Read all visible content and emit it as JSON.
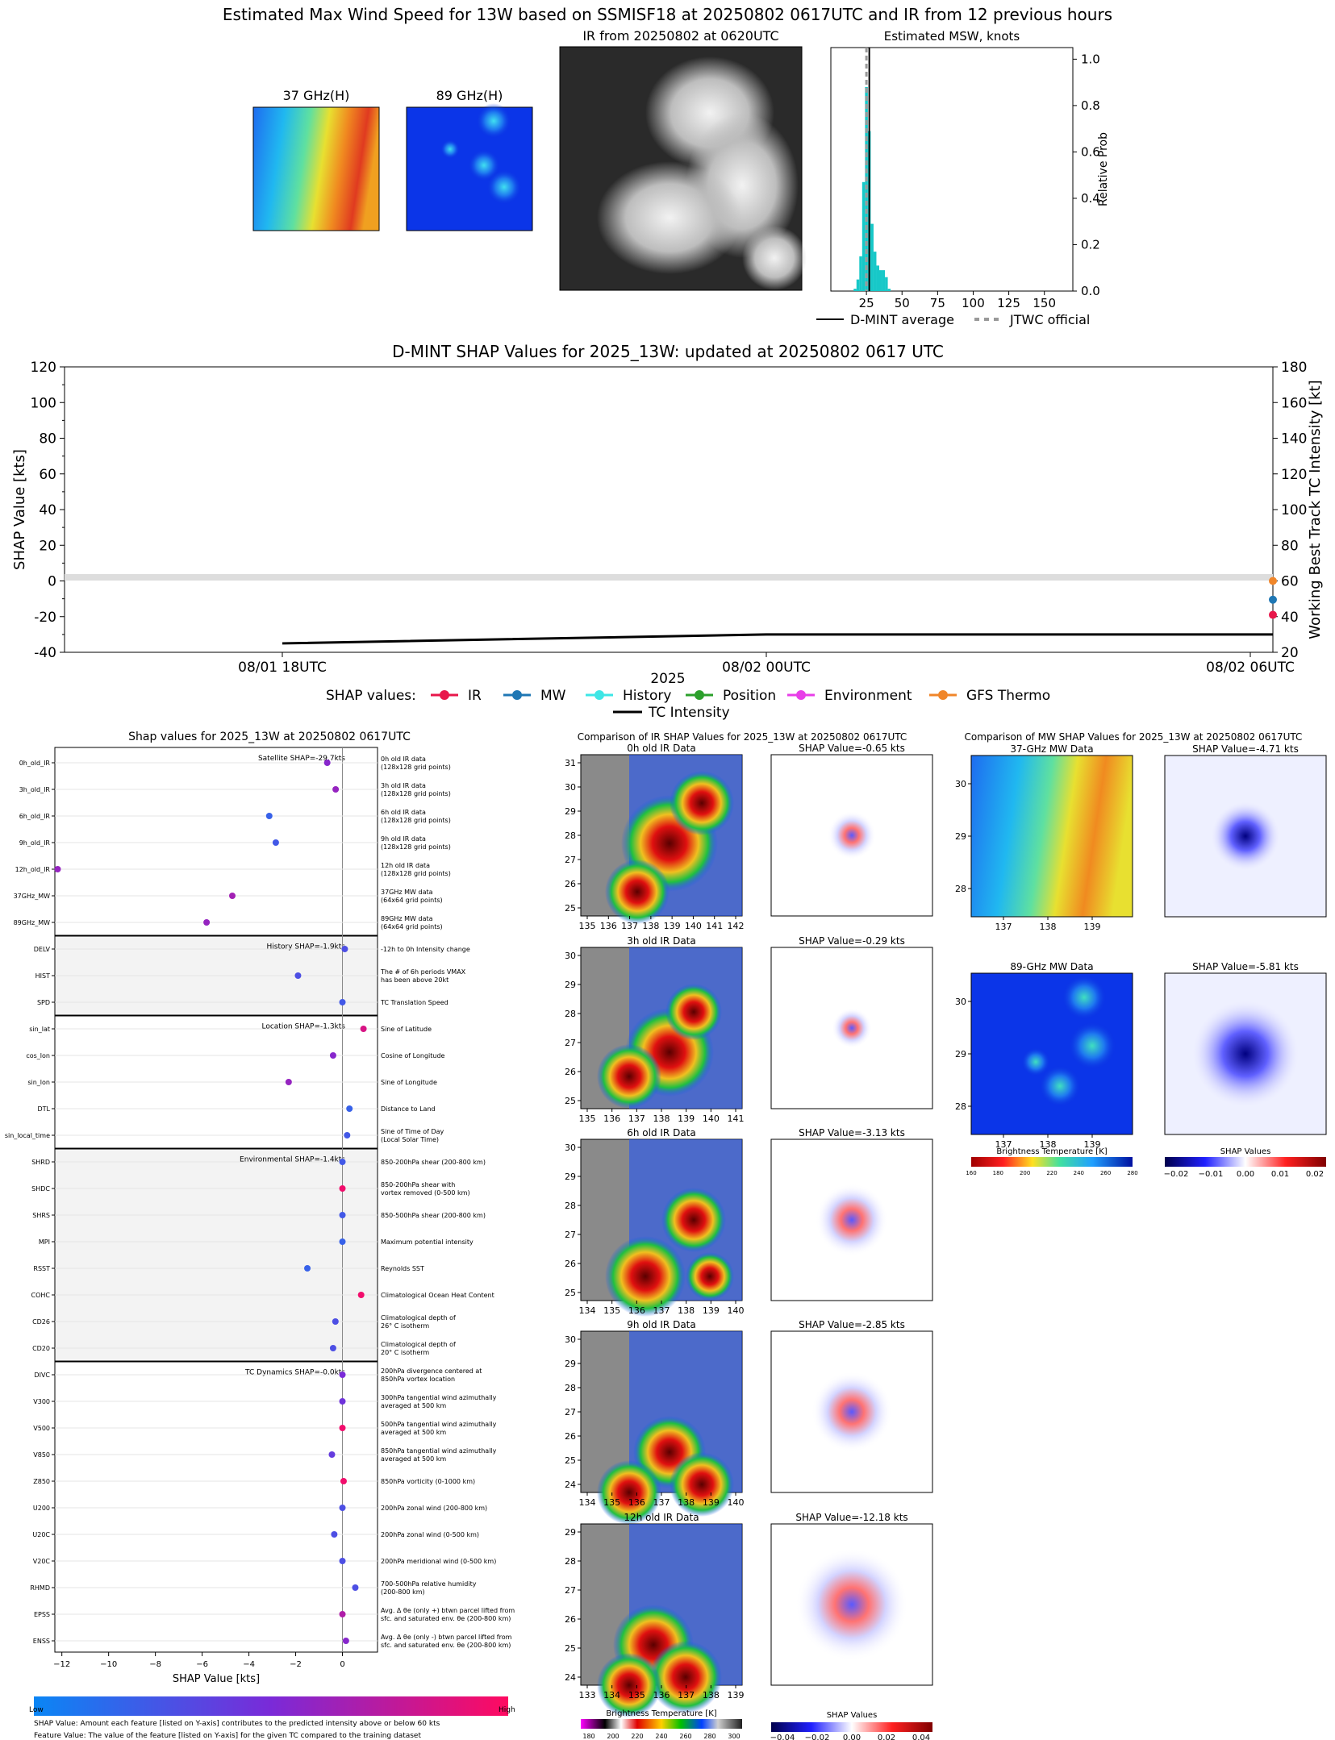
{
  "header": {
    "title": "Estimated Max Wind Speed for 13W based on SSMISF18 at 20250802 0617UTC and IR from 12 previous hours"
  },
  "top_panels": {
    "mw37_title": "37 GHz(H)",
    "mw89_title": "89 GHz(H)",
    "ir_title": "IR from 20250802 at 0620UTC",
    "msw_title": "Estimated MSW, knots",
    "msw_ylabel": "Relative Prob",
    "msw_xticks": [
      "25",
      "50",
      "75",
      "100",
      "125",
      "150"
    ],
    "msw_yticks": [
      "0.0",
      "0.2",
      "0.4",
      "0.6",
      "0.8",
      "1.0"
    ],
    "legend_dmint": "D-MINT average",
    "legend_jtwc": "JTWC official"
  },
  "shap_ts": {
    "title": "D-MINT SHAP Values for 2025_13W: updated at 20250802 0617 UTC",
    "ylabel_left": "SHAP Value [kts]",
    "ylabel_right": "Working Best Track TC Intensity [kt]",
    "xlabel": "2025",
    "left_ticks": [
      "120",
      "100",
      "80",
      "60",
      "40",
      "20",
      "0",
      "-20",
      "-40"
    ],
    "right_ticks": [
      "180",
      "160",
      "140",
      "120",
      "100",
      "80",
      "60",
      "40",
      "20"
    ],
    "x_ticks": [
      "08/01 18UTC",
      "08/02 00UTC",
      "08/02 06UTC"
    ],
    "legend_prefix": "SHAP values:",
    "legend_items": [
      {
        "label": "IR",
        "color": "#e8174b"
      },
      {
        "label": "MW",
        "color": "#1f77b4"
      },
      {
        "label": "History",
        "color": "#3ee6e6"
      },
      {
        "label": "Position",
        "color": "#2ca02c"
      },
      {
        "label": "Environment",
        "color": "#e83ee8"
      },
      {
        "label": "GFS Thermo",
        "color": "#f0862a"
      }
    ],
    "legend_intensity": "TC Intensity"
  },
  "beeswarm": {
    "title": "Shap values for 2025_13W at 20250802 0617UTC",
    "xlabel": "SHAP Value [kts]",
    "x_ticks": [
      "−12",
      "−10",
      "−8",
      "−6",
      "−4",
      "−2",
      "0"
    ],
    "groups": [
      {
        "label": "Satellite SHAP=-29.7kts",
        "shaded": false
      },
      {
        "label": "History SHAP=-1.9kts",
        "shaded": true
      },
      {
        "label": "Location SHAP=-1.3kts",
        "shaded": false
      },
      {
        "label": "Environmental SHAP=-1.4kts",
        "shaded": true
      },
      {
        "label": "TC Dynamics SHAP=-0.0kts",
        "shaded": false
      }
    ],
    "features": [
      {
        "name": "0h_old_IR",
        "desc": [
          "0h old IR data",
          "(128x128 grid points)"
        ]
      },
      {
        "name": "3h_old_IR",
        "desc": [
          "3h old IR data",
          "(128x128 grid points)"
        ]
      },
      {
        "name": "6h_old_IR",
        "desc": [
          "6h old IR data",
          "(128x128 grid points)"
        ]
      },
      {
        "name": "9h_old_IR",
        "desc": [
          "9h old IR data",
          "(128x128 grid points)"
        ]
      },
      {
        "name": "12h_old_IR",
        "desc": [
          "12h old IR data",
          "(128x128 grid points)"
        ]
      },
      {
        "name": "37GHz_MW",
        "desc": [
          "37GHz MW data",
          "(64x64 grid points)"
        ]
      },
      {
        "name": "89GHz_MW",
        "desc": [
          "89GHz MW data",
          "(64x64 grid points)"
        ]
      },
      {
        "name": "DELV",
        "desc": [
          "-12h to 0h Intensity change"
        ]
      },
      {
        "name": "HIST",
        "desc": [
          "The # of 6h periods VMAX",
          "has been above 20kt"
        ]
      },
      {
        "name": "SPD",
        "desc": [
          "TC Translation Speed"
        ]
      },
      {
        "name": "sin_lat",
        "desc": [
          "Sine of Latitude"
        ]
      },
      {
        "name": "cos_lon",
        "desc": [
          "Cosine of Longitude"
        ]
      },
      {
        "name": "sin_lon",
        "desc": [
          "Sine of Longitude"
        ]
      },
      {
        "name": "DTL",
        "desc": [
          "Distance to Land"
        ]
      },
      {
        "name": "sin_local_time",
        "desc": [
          "Sine of Time of Day",
          "(Local Solar Time)"
        ]
      },
      {
        "name": "SHRD",
        "desc": [
          "850-200hPa shear (200-800 km)"
        ]
      },
      {
        "name": "SHDC",
        "desc": [
          "850-200hPa shear with",
          "vortex removed (0-500 km)"
        ]
      },
      {
        "name": "SHRS",
        "desc": [
          "850-500hPa shear (200-800 km)"
        ]
      },
      {
        "name": "MPI",
        "desc": [
          "Maximum potential intensity"
        ]
      },
      {
        "name": "RSST",
        "desc": [
          "Reynolds SST"
        ]
      },
      {
        "name": "COHC",
        "desc": [
          "Climatological Ocean Heat Content"
        ]
      },
      {
        "name": "CD26",
        "desc": [
          "Climatological depth of",
          "26° C isotherm"
        ]
      },
      {
        "name": "CD20",
        "desc": [
          "Climatological depth of",
          "20° C isotherm"
        ]
      },
      {
        "name": "DIVC",
        "desc": [
          "200hPa divergence centered at",
          "850hPa vortex location"
        ]
      },
      {
        "name": "V300",
        "desc": [
          "300hPa tangential wind azimuthally",
          "averaged at 500 km"
        ]
      },
      {
        "name": "V500",
        "desc": [
          "500hPa tangential wind azimuthally",
          "averaged at 500 km"
        ]
      },
      {
        "name": "V850",
        "desc": [
          "850hPa tangential wind azimuthally",
          "averaged at 500 km"
        ]
      },
      {
        "name": "Z850",
        "desc": [
          "850hPa vorticity (0-1000 km)"
        ]
      },
      {
        "name": "U200",
        "desc": [
          "200hPa zonal wind (200-800 km)"
        ]
      },
      {
        "name": "U20C",
        "desc": [
          "200hPa zonal wind (0-500 km)"
        ]
      },
      {
        "name": "V20C",
        "desc": [
          "200hPa meridional wind (0-500 km)"
        ]
      },
      {
        "name": "RHMD",
        "desc": [
          "700-500hPa relative humidity",
          "(200-800 km)"
        ]
      },
      {
        "name": "EPSS",
        "desc": [
          "Avg. Δ θe (only +) btwn parcel lifted from",
          "sfc. and saturated env. θe (200-800 km)"
        ]
      },
      {
        "name": "ENSS",
        "desc": [
          "Avg. Δ θe (only -) btwn parcel lifted from",
          "sfc. and saturated env. θe (200-800 km)"
        ]
      }
    ],
    "colorbar_low": "Low",
    "colorbar_high": "High",
    "footnote1": "SHAP Value: Amount each feature [listed on Y-axis] contributes to the predicted intensity above or below 60 kts",
    "footnote2": "Feature Value: The value of the feature [listed on Y-axis] for the given TC compared to the training dataset"
  },
  "ir_comparison": {
    "title": "Comparison of IR SHAP Values for 2025_13W at 20250802 0617UTC",
    "rows": [
      {
        "data_title": "0h old IR Data",
        "shap_title": "SHAP Value=-0.65 kts",
        "yticks": [
          "31",
          "30",
          "29",
          "28",
          "27",
          "26",
          "25"
        ],
        "xticks": [
          "135",
          "136",
          "137",
          "138",
          "139",
          "140",
          "141",
          "142"
        ]
      },
      {
        "data_title": "3h old IR Data",
        "shap_title": "SHAP Value=-0.29 kts",
        "yticks": [
          "30",
          "29",
          "28",
          "27",
          "26",
          "25"
        ],
        "xticks": [
          "135",
          "136",
          "137",
          "138",
          "139",
          "140",
          "141"
        ]
      },
      {
        "data_title": "6h old IR Data",
        "shap_title": "SHAP Value=-3.13 kts",
        "yticks": [
          "30",
          "29",
          "28",
          "27",
          "26",
          "25"
        ],
        "xticks": [
          "134",
          "135",
          "136",
          "137",
          "138",
          "139",
          "140"
        ]
      },
      {
        "data_title": "9h old IR Data",
        "shap_title": "SHAP Value=-2.85 kts",
        "yticks": [
          "30",
          "29",
          "28",
          "27",
          "26",
          "25",
          "24"
        ],
        "xticks": [
          "134",
          "135",
          "136",
          "137",
          "138",
          "139",
          "140"
        ]
      },
      {
        "data_title": "12h old IR Data",
        "shap_title": "SHAP Value=-12.18 kts",
        "yticks": [
          "29",
          "28",
          "27",
          "26",
          "25",
          "24"
        ],
        "xticks": [
          "133",
          "134",
          "135",
          "136",
          "137",
          "138",
          "139"
        ]
      }
    ],
    "cbar_bt_label": "Brightness Temperature [K]",
    "cbar_bt_ticks": [
      "180",
      "200",
      "220",
      "240",
      "260",
      "280",
      "300"
    ],
    "cbar_shap_label": "SHAP Values",
    "cbar_shap_ticks": [
      "−0.04",
      "−0.02",
      "0.00",
      "0.02",
      "0.04"
    ]
  },
  "mw_comparison": {
    "title": "Comparison of MW SHAP Values for 2025_13W at 20250802 0617UTC",
    "rows": [
      {
        "data_title": "37-GHz MW Data",
        "shap_title": "SHAP Value=-4.71 kts",
        "yticks": [
          "30",
          "29",
          "28"
        ],
        "xticks": [
          "137",
          "138",
          "139"
        ]
      },
      {
        "data_title": "89-GHz MW Data",
        "shap_title": "SHAP Value=-5.81 kts",
        "yticks": [
          "30",
          "29",
          "28"
        ],
        "xticks": [
          "137",
          "138",
          "139"
        ]
      }
    ],
    "cbar_bt_label": "Brightness Temperature [K]",
    "cbar_bt_ticks": [
      "160",
      "180",
      "200",
      "220",
      "240",
      "260",
      "280"
    ],
    "cbar_shap_label": "SHAP Values",
    "cbar_shap_ticks": [
      "−0.02",
      "−0.01",
      "0.00",
      "0.01",
      "0.02"
    ]
  },
  "chart_data": [
    {
      "type": "bar",
      "title": "Estimated MSW, knots",
      "ylabel": "Relative Prob",
      "x": [
        17,
        19,
        21,
        23,
        25,
        27,
        29,
        31,
        33,
        35,
        37,
        39,
        41
      ],
      "values": [
        0.01,
        0.05,
        0.15,
        0.47,
        0.88,
        0.69,
        0.29,
        0.17,
        0.11,
        0.09,
        0.09,
        0.06,
        0.01
      ],
      "xlim": [
        0,
        170
      ],
      "ylim": [
        0,
        1.05
      ],
      "dmint_average": 27,
      "jtwc_official": 25,
      "color": "#17c8c8"
    },
    {
      "type": "line",
      "title": "D-MINT SHAP Values for 2025_13W: updated at 20250802 0617 UTC",
      "ylabel": "SHAP Value [kts]",
      "ylabel_right": "Working Best Track TC Intensity [kt]",
      "ylim": [
        -40,
        120
      ],
      "ylim_right": [
        20,
        180
      ],
      "x_hours_from_0801_18UTC": [
        0,
        6,
        12.28
      ],
      "series": [
        {
          "name": "TC Intensity",
          "values": [
            25,
            30,
            30
          ],
          "axis": "right"
        }
      ],
      "last_points": [
        {
          "name": "IR",
          "value": -19,
          "color": "#e8174b"
        },
        {
          "name": "MW",
          "value": -10.5,
          "color": "#1f77b4"
        },
        {
          "name": "GFS Thermo",
          "value": 0,
          "color": "#f0862a"
        }
      ]
    },
    {
      "type": "scatter",
      "title": "Shap values for 2025_13W at 20250802 0617UTC",
      "xlabel": "SHAP Value [kts]",
      "xlim": [
        -12.3,
        1.5
      ],
      "values": [
        -0.65,
        -0.29,
        -3.13,
        -2.85,
        -12.18,
        -4.71,
        -5.81,
        0.1,
        -1.9,
        0.0,
        0.9,
        -0.4,
        -2.3,
        0.3,
        0.2,
        0.0,
        0.0,
        0.0,
        0.0,
        -1.5,
        0.8,
        -0.3,
        -0.4,
        0.0,
        0.0,
        0.0,
        -0.45,
        0.05,
        0.0,
        -0.35,
        0.0,
        0.55,
        0.0,
        0.15
      ],
      "feature_values": [
        0.55,
        0.6,
        0.2,
        0.25,
        0.6,
        0.65,
        0.6,
        0.3,
        0.3,
        0.25,
        0.85,
        0.55,
        0.6,
        0.2,
        0.25,
        0.25,
        0.95,
        0.25,
        0.2,
        0.2,
        0.95,
        0.3,
        0.3,
        0.5,
        0.45,
        0.95,
        0.4,
        0.95,
        0.3,
        0.3,
        0.3,
        0.3,
        0.7,
        0.55
      ]
    }
  ]
}
